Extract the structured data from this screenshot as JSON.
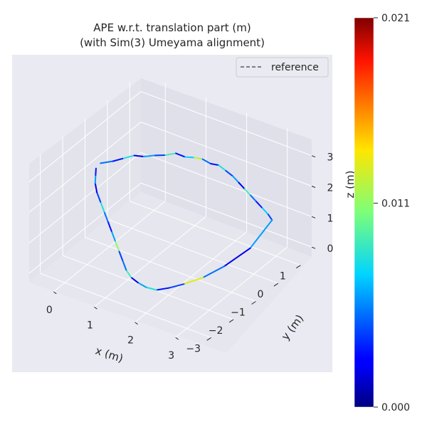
{
  "chart_data": {
    "type": "line",
    "title": "APE w.r.t. translation part (m)",
    "subtitle": "(with Sim(3) Umeyama alignment)",
    "xlabel": "x (m)",
    "ylabel": "y (m)",
    "zlabel": "z (m)",
    "xticks": [
      "0",
      "1",
      "2",
      "3"
    ],
    "yticks": [
      "−3",
      "−2",
      "−1",
      "0",
      "1"
    ],
    "zticks": [
      "0",
      "1",
      "2",
      "3"
    ],
    "xlim": [
      -0.6,
      3.6
    ],
    "ylim": [
      -3.5,
      1.5
    ],
    "zlim": [
      -0.3,
      3.6
    ],
    "grid": true,
    "legend": {
      "position": "top-right",
      "entries": [
        {
          "label": "reference",
          "style": "dashed",
          "color": "#5a5a5a"
        }
      ]
    },
    "colorbar": {
      "colormap": "jet",
      "min": 0.0,
      "max": 0.021,
      "ticks": [
        "0.000",
        "0.011",
        "0.021"
      ]
    },
    "series": [
      {
        "name": "reference",
        "x": [
          -0.55,
          -0.35,
          -0.2,
          -0.05,
          0.1,
          0.3,
          0.5,
          0.7,
          0.9,
          1.1,
          1.3,
          1.5,
          1.7,
          1.9,
          2.1,
          2.3,
          2.5,
          2.7,
          2.9,
          3.1,
          3.3,
          3.45,
          3.35,
          3.1,
          2.85,
          2.6,
          2.4,
          2.2,
          2.0,
          1.8,
          1.6,
          1.4,
          1.2,
          1.0,
          0.8,
          0.6,
          0.4,
          0.2,
          0.0,
          -0.2,
          -0.35,
          -0.45,
          -0.55
        ],
        "y": [
          -0.4,
          -0.2,
          0.0,
          0.2,
          0.35,
          0.5,
          0.6,
          0.7,
          0.75,
          0.8,
          0.8,
          0.8,
          0.8,
          0.75,
          0.7,
          0.6,
          0.5,
          0.4,
          0.3,
          0.2,
          0.1,
          0.0,
          -0.8,
          -1.5,
          -2.0,
          -2.4,
          -2.7,
          -2.9,
          -3.0,
          -3.0,
          -2.95,
          -2.8,
          -2.6,
          -2.4,
          -2.2,
          -2.0,
          -1.8,
          -1.6,
          -1.4,
          -1.2,
          -1.0,
          -0.8,
          -0.6
        ],
        "z": [
          1.8,
          1.85,
          1.9,
          1.95,
          1.9,
          1.95,
          2.0,
          2.1,
          2.05,
          2.1,
          2.15,
          2.1,
          2.15,
          2.1,
          2.05,
          2.0,
          1.95,
          1.9,
          1.85,
          1.8,
          1.75,
          1.7,
          1.2,
          0.9,
          0.7,
          0.6,
          0.55,
          0.5,
          0.55,
          0.6,
          0.65,
          0.7,
          0.8,
          0.9,
          1.0,
          1.1,
          1.2,
          1.3,
          1.4,
          1.5,
          1.6,
          1.7,
          1.75
        ],
        "error": [
          0.005,
          0.003,
          0.008,
          0.002,
          0.006,
          0.004,
          0.009,
          0.003,
          0.007,
          0.012,
          0.005,
          0.003,
          0.008,
          0.004,
          0.006,
          0.002,
          0.009,
          0.005,
          0.003,
          0.007,
          0.004,
          0.006,
          0.002,
          0.005,
          0.013,
          0.004,
          0.003,
          0.008,
          0.006,
          0.002,
          0.009,
          0.005,
          0.004,
          0.011,
          0.006,
          0.003,
          0.005,
          0.008,
          0.004,
          0.002,
          0.006,
          0.003,
          0.005
        ]
      }
    ]
  }
}
